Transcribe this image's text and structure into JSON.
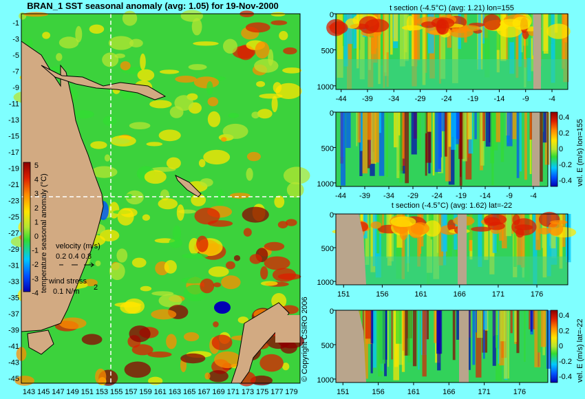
{
  "title": "BRAN_1 SST seasonal anomaly (avg: 1.05) for 19-Nov-2000",
  "copyright": "© Copyright CSIRO 2006",
  "colors": {
    "background": "#7fffff",
    "land": "#d2aa82",
    "mask": "#b9a58c",
    "scale": [
      "#0000b4",
      "#0050ff",
      "#00c8ff",
      "#32dc32",
      "#b4e632",
      "#ffe600",
      "#ff8c00",
      "#dc1e00",
      "#8c0000"
    ]
  },
  "chart_data": [
    {
      "type": "heatmap",
      "name": "map",
      "title": "BRAN_1 SST seasonal anomaly (avg: 1.05) for 19-Nov-2000",
      "x_ticks": [
        "143",
        "145",
        "147",
        "149",
        "151",
        "153",
        "155",
        "157",
        "159",
        "161",
        "163",
        "165",
        "167",
        "169",
        "171",
        "173",
        "175",
        "177",
        "179"
      ],
      "y_ticks": [
        "-1",
        "-3",
        "-5",
        "-7",
        "-9",
        "-11",
        "-13",
        "-15",
        "-17",
        "-19",
        "-21",
        "-23",
        "-25",
        "-27",
        "-29",
        "-31",
        "-33",
        "-35",
        "-37",
        "-39",
        "-41",
        "-43",
        "-45"
      ],
      "xlim": [
        142,
        180
      ],
      "ylim": [
        -45,
        1
      ],
      "section_lon": 155,
      "section_lat": -22,
      "colorbar": {
        "label": "temperature seasonal anomaly (°C)",
        "ticks": [
          "5",
          "4",
          "3",
          "2",
          "1",
          "0",
          "-1",
          "-2",
          "-3",
          "-4"
        ],
        "range": [
          -4,
          5
        ]
      },
      "legend": {
        "velocity_label": "velocity (m/s)",
        "velocity_values": "0.2 0.4 0.8",
        "wind_label": "wind stress",
        "wind_value": "0.1 N/m"
      }
    },
    {
      "type": "heatmap",
      "name": "t-section-lon",
      "title": "t section (-4.5°C) (avg: 1.21) lon=155",
      "x_ticks": [
        "-44",
        "-39",
        "-34",
        "-29",
        "-24",
        "-19",
        "-14",
        "-9",
        "-4"
      ],
      "y_ticks": [
        "0",
        "500",
        "1000"
      ],
      "xlim": [
        -45,
        -1
      ],
      "ylim": [
        1050,
        0
      ]
    },
    {
      "type": "heatmap",
      "name": "vel-section-lon",
      "title": "",
      "x_ticks": [
        "-44",
        "-39",
        "-34",
        "-29",
        "-24",
        "-19",
        "-14",
        "-9",
        "-4"
      ],
      "y_ticks": [
        "0",
        "500",
        "1000"
      ],
      "xlim": [
        -45,
        -1
      ],
      "ylim": [
        1050,
        0
      ],
      "colorbar": {
        "label": "vel. E (m/s) lon=155",
        "ticks": [
          "0.4",
          "0.2",
          "0",
          "-0.2",
          "-0.4"
        ],
        "range": [
          -0.4,
          0.4
        ]
      }
    },
    {
      "type": "heatmap",
      "name": "t-section-lat",
      "title": "t section (-4.5°C) (avg: 1.62) lat=-22",
      "x_ticks": [
        "151",
        "156",
        "161",
        "166",
        "171",
        "176"
      ],
      "y_ticks": [
        "0",
        "500",
        "1000"
      ],
      "xlim": [
        150,
        180
      ],
      "ylim": [
        1050,
        0
      ]
    },
    {
      "type": "heatmap",
      "name": "vel-section-lat",
      "title": "",
      "x_ticks": [
        "151",
        "156",
        "161",
        "166",
        "171",
        "176"
      ],
      "y_ticks": [
        "0",
        "500",
        "1000"
      ],
      "xlim": [
        150,
        180
      ],
      "ylim": [
        1050,
        0
      ],
      "colorbar": {
        "label": "vel. E (m/s) lat=-22",
        "ticks": [
          "0.4",
          "0.2",
          "0",
          "-0.2",
          "-0.4"
        ],
        "range": [
          -0.4,
          0.4
        ]
      }
    }
  ]
}
